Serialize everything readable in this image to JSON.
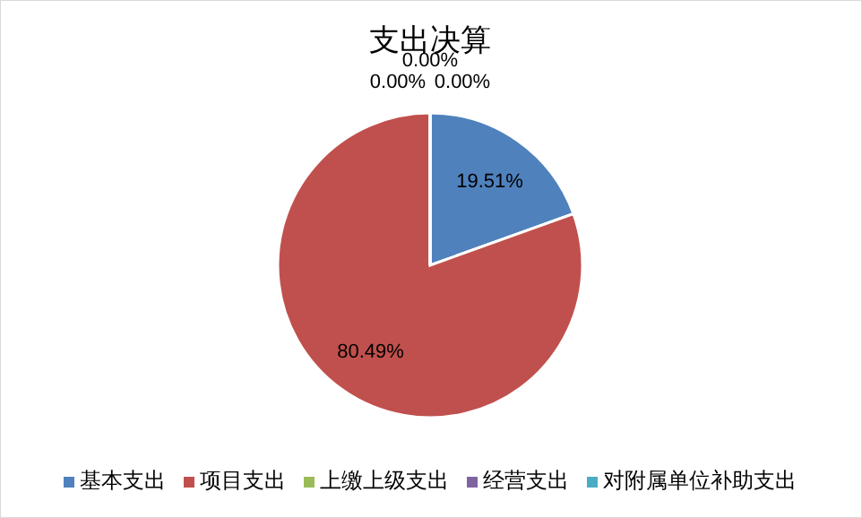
{
  "chart_data": {
    "type": "pie",
    "title": "支出决算",
    "categories": [
      "基本支出",
      "项目支出",
      "上缴上级支出",
      "经营支出",
      "对附属单位补助支出"
    ],
    "values": [
      19.51,
      80.49,
      0,
      0,
      0
    ],
    "colors": [
      "#4f81bd",
      "#c0504d",
      "#9bbb59",
      "#8064a2",
      "#4bacc6"
    ],
    "value_labels": [
      "19.51%",
      "80.49%",
      "0.00%",
      "0.00%",
      "0.00%"
    ],
    "legend": "bottom"
  }
}
